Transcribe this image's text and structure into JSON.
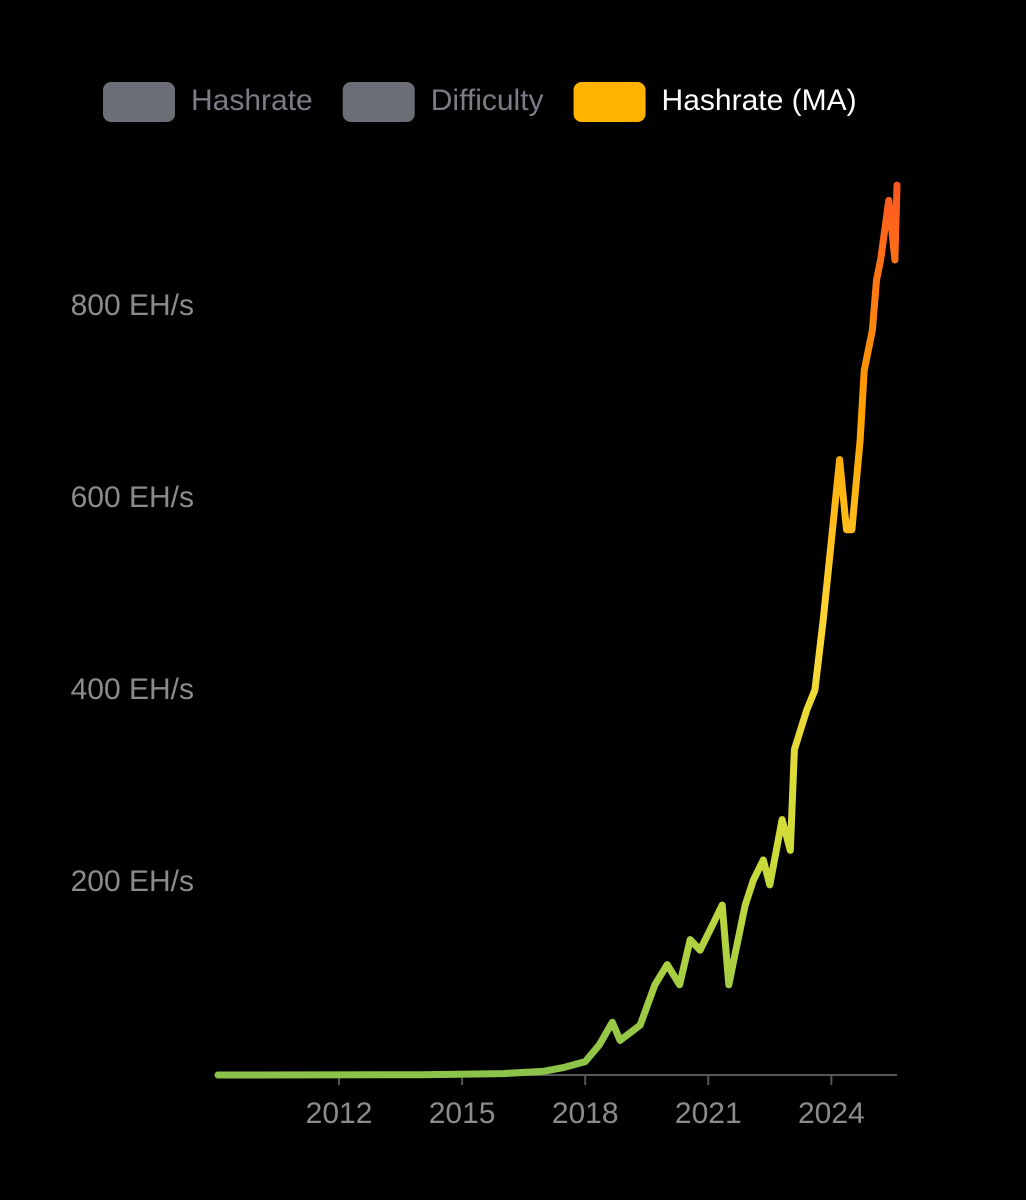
{
  "chart_data": {
    "type": "line",
    "series": [
      {
        "name": "Hashrate",
        "color": "#6b6e76",
        "hidden": true
      },
      {
        "name": "Difficulty",
        "color": "#6b6e76",
        "hidden": true
      },
      {
        "name": "Hashrate (MA)",
        "color": "#ffb300",
        "gradient": [
          "#8bc34a",
          "#cddc39",
          "#fdd835",
          "#ffa000",
          "#ff5722"
        ],
        "x": [
          2009.05,
          2014,
          2016,
          2017,
          2017.5,
          2018,
          2018.34,
          2018.66,
          2018.85,
          2019.34,
          2019.7,
          2020,
          2020.3,
          2020.56,
          2020.8,
          2021.1,
          2021.34,
          2021.5,
          2021.6,
          2021.9,
          2022.1,
          2022.34,
          2022.5,
          2022.8,
          2023,
          2023.1,
          2023.4,
          2023.6,
          2023.8,
          2024,
          2024.2,
          2024.37,
          2024.5,
          2024.7,
          2024.8,
          2025,
          2025.1,
          2025.2,
          2025.4,
          2025.55,
          2025.6
        ],
        "values": [
          0,
          0.3,
          1.5,
          4,
          8,
          14,
          31,
          55,
          36,
          52,
          94,
          115,
          94,
          141,
          130,
          156,
          177,
          94,
          115,
          177,
          203,
          224,
          198,
          266,
          234,
          339,
          380,
          401,
          474,
          557,
          641,
          568,
          568,
          661,
          734,
          776,
          828,
          849,
          911,
          849,
          927
        ]
      }
    ],
    "xlim": [
      2009.05,
      2025.6
    ],
    "xticks": [
      2012,
      2015,
      2018,
      2021,
      2024
    ],
    "ylim": [
      0,
      940
    ],
    "yticks": [
      {
        "value": 200,
        "label": "200 EH/s"
      },
      {
        "value": 400,
        "label": "400 EH/s"
      },
      {
        "value": 600,
        "label": "600 EH/s"
      },
      {
        "value": 800,
        "label": "800 EH/s"
      }
    ]
  }
}
